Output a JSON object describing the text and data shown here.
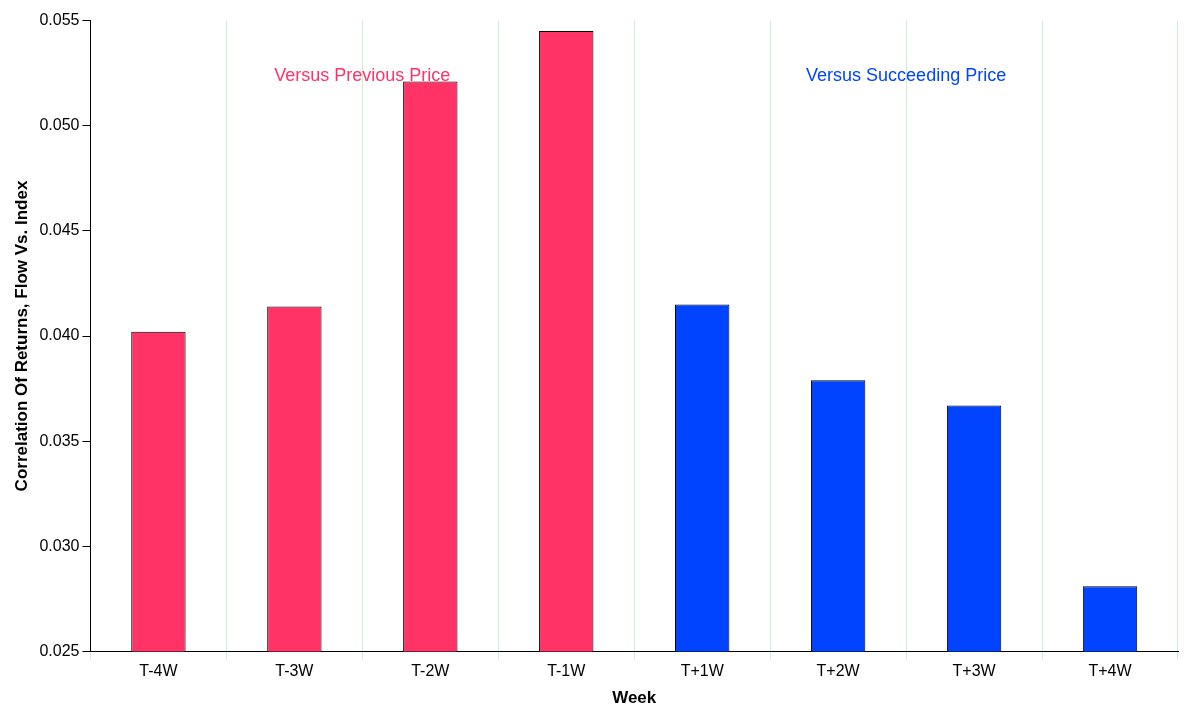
{
  "chart_data": {
    "type": "bar",
    "xlabel": "Week",
    "ylabel": "Correlation Of Returns, Flow Vs. Index",
    "categories": [
      "T-4W",
      "T-3W",
      "T-2W",
      "T-1W",
      "T+1W",
      "T+2W",
      "T+3W",
      "T+4W"
    ],
    "series": [
      {
        "name": "Versus Previous Price",
        "color": "#ff3366",
        "values": [
          0.0402,
          0.0414,
          0.0521,
          0.0545,
          null,
          null,
          null,
          null
        ]
      },
      {
        "name": "Versus Succeeding Price",
        "color": "#0044ff",
        "values": [
          null,
          null,
          null,
          null,
          0.0415,
          0.0379,
          0.0367,
          0.0281
        ]
      }
    ],
    "ylim": [
      0.025,
      0.055
    ],
    "yticks": [
      {
        "value": 0.025,
        "label": "0.025"
      },
      {
        "value": 0.03,
        "label": "0.030"
      },
      {
        "value": 0.035,
        "label": "0.035"
      },
      {
        "value": 0.04,
        "label": "0.040"
      },
      {
        "value": 0.045,
        "label": "0.045"
      },
      {
        "value": 0.05,
        "label": "0.050"
      },
      {
        "value": 0.055,
        "label": "0.055"
      }
    ],
    "grid": "x",
    "legend": "top"
  }
}
